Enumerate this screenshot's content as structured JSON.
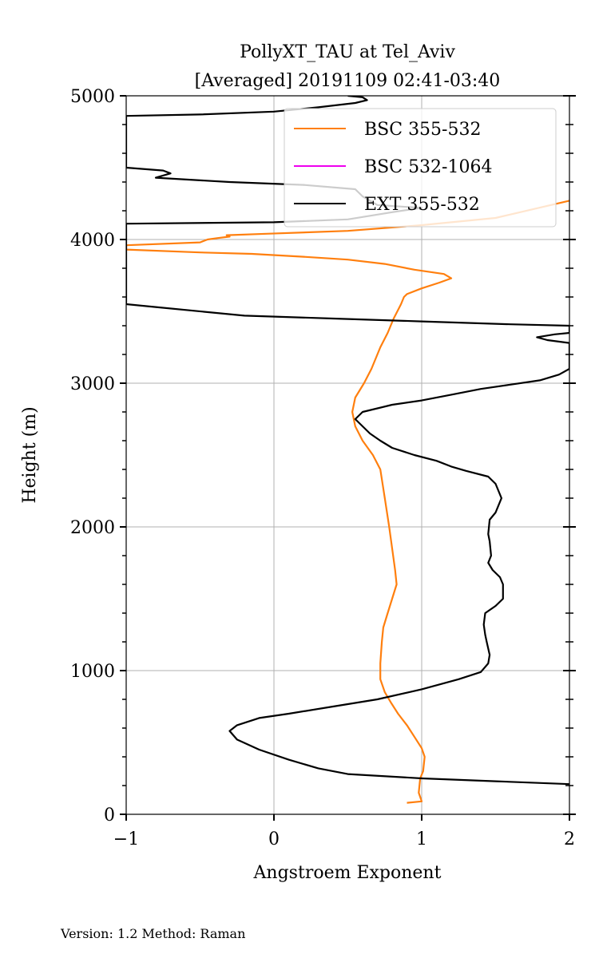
{
  "chart_data": {
    "type": "line",
    "title": "PollyXT_TAU at Tel_Aviv",
    "subtitle": "[Averaged] 20191109 02:41-03:40",
    "xlabel": "Angstroem Exponent",
    "ylabel": "Height (m)",
    "xlim": [
      -1,
      2
    ],
    "ylim": [
      0,
      5000
    ],
    "x_ticks": [
      -1,
      0,
      1,
      2
    ],
    "x_tick_labels": [
      "−1",
      "0",
      "1",
      "2"
    ],
    "y_ticks": [
      0,
      1000,
      2000,
      3000,
      4000,
      5000
    ],
    "y_tick_labels": [
      "0",
      "1000",
      "2000",
      "3000",
      "4000",
      "5000"
    ],
    "grid": true,
    "legend_position": "top-right",
    "series": [
      {
        "name": "BSC 355-532",
        "color": "#ff7f0e",
        "points": [
          [
            0.9,
            80
          ],
          [
            1.0,
            90
          ],
          [
            0.98,
            150
          ],
          [
            0.99,
            250
          ],
          [
            1.01,
            300
          ],
          [
            1.02,
            400
          ],
          [
            1.0,
            460
          ],
          [
            0.95,
            540
          ],
          [
            0.9,
            620
          ],
          [
            0.84,
            700
          ],
          [
            0.79,
            780
          ],
          [
            0.75,
            850
          ],
          [
            0.72,
            940
          ],
          [
            0.72,
            1050
          ],
          [
            0.73,
            1200
          ],
          [
            0.74,
            1300
          ],
          [
            0.77,
            1400
          ],
          [
            0.8,
            1500
          ],
          [
            0.83,
            1600
          ],
          [
            0.82,
            1700
          ],
          [
            0.8,
            1850
          ],
          [
            0.78,
            2000
          ],
          [
            0.75,
            2200
          ],
          [
            0.72,
            2400
          ],
          [
            0.67,
            2500
          ],
          [
            0.6,
            2600
          ],
          [
            0.55,
            2700
          ],
          [
            0.53,
            2800
          ],
          [
            0.55,
            2900
          ],
          [
            0.61,
            3000
          ],
          [
            0.66,
            3100
          ],
          [
            0.72,
            3250
          ],
          [
            0.77,
            3350
          ],
          [
            0.81,
            3450
          ],
          [
            0.86,
            3550
          ],
          [
            0.88,
            3600
          ],
          [
            0.9,
            3620
          ],
          [
            1.0,
            3660
          ],
          [
            1.12,
            3700
          ],
          [
            1.2,
            3730
          ],
          [
            1.15,
            3760
          ],
          [
            0.95,
            3790
          ],
          [
            0.75,
            3830
          ],
          [
            0.5,
            3860
          ],
          [
            0.2,
            3880
          ],
          [
            -0.15,
            3900
          ],
          [
            -0.5,
            3910
          ],
          [
            -1.0,
            3930
          ],
          [
            -1.0,
            3960
          ],
          [
            -0.5,
            3980
          ],
          [
            -0.45,
            4000
          ],
          [
            -0.38,
            4010
          ],
          [
            -0.3,
            4020
          ],
          [
            -0.32,
            4030
          ],
          [
            -0.05,
            4040
          ],
          [
            0.5,
            4060
          ],
          [
            1.0,
            4100
          ],
          [
            1.5,
            4150
          ],
          [
            2.0,
            4270
          ]
        ]
      },
      {
        "name": "BSC 532-1064",
        "color": "#ee00ee",
        "points": []
      },
      {
        "name": "EXT 355-532",
        "color": "#000000",
        "points": [
          [
            2.0,
            210
          ],
          [
            1.5,
            230
          ],
          [
            1.0,
            250
          ],
          [
            0.5,
            280
          ],
          [
            0.3,
            320
          ],
          [
            0.1,
            380
          ],
          [
            -0.1,
            450
          ],
          [
            -0.25,
            520
          ],
          [
            -0.3,
            580
          ],
          [
            -0.25,
            620
          ],
          [
            -0.1,
            670
          ],
          [
            0.1,
            700
          ],
          [
            0.4,
            750
          ],
          [
            0.7,
            800
          ],
          [
            1.0,
            870
          ],
          [
            1.25,
            940
          ],
          [
            1.4,
            990
          ],
          [
            1.45,
            1050
          ],
          [
            1.46,
            1110
          ],
          [
            1.44,
            1200
          ],
          [
            1.43,
            1250
          ],
          [
            1.42,
            1320
          ],
          [
            1.43,
            1400
          ],
          [
            1.5,
            1450
          ],
          [
            1.55,
            1500
          ],
          [
            1.55,
            1600
          ],
          [
            1.53,
            1650
          ],
          [
            1.48,
            1700
          ],
          [
            1.45,
            1750
          ],
          [
            1.47,
            1800
          ],
          [
            1.46,
            1900
          ],
          [
            1.45,
            1950
          ],
          [
            1.46,
            2050
          ],
          [
            1.5,
            2100
          ],
          [
            1.54,
            2200
          ],
          [
            1.52,
            2250
          ],
          [
            1.5,
            2300
          ],
          [
            1.45,
            2350
          ],
          [
            1.3,
            2390
          ],
          [
            1.2,
            2420
          ],
          [
            1.1,
            2460
          ],
          [
            0.95,
            2500
          ],
          [
            0.8,
            2550
          ],
          [
            0.72,
            2600
          ],
          [
            0.65,
            2650
          ],
          [
            0.6,
            2700
          ],
          [
            0.55,
            2750
          ],
          [
            0.6,
            2800
          ],
          [
            0.8,
            2850
          ],
          [
            1.0,
            2880
          ],
          [
            1.2,
            2920
          ],
          [
            1.4,
            2960
          ],
          [
            1.6,
            2990
          ],
          [
            1.8,
            3020
          ],
          [
            1.93,
            3060
          ],
          [
            2.0,
            3100
          ],
          [
            2.0,
            3280
          ],
          [
            1.85,
            3300
          ],
          [
            1.78,
            3320
          ],
          [
            1.9,
            3340
          ],
          [
            2.0,
            3350
          ],
          [
            2.0,
            3400
          ],
          [
            1.6,
            3410
          ],
          [
            1.0,
            3430
          ],
          [
            0.4,
            3450
          ],
          [
            -0.2,
            3470
          ],
          [
            -0.8,
            3530
          ],
          [
            -1.0,
            3550
          ],
          [
            -1.0,
            4110
          ],
          [
            0.0,
            4120
          ],
          [
            0.5,
            4140
          ],
          [
            0.8,
            4190
          ],
          [
            1.0,
            4220
          ],
          [
            0.7,
            4240
          ],
          [
            0.6,
            4300
          ],
          [
            0.55,
            4350
          ],
          [
            0.2,
            4380
          ],
          [
            -0.3,
            4400
          ],
          [
            -0.8,
            4430
          ],
          [
            -0.7,
            4460
          ],
          [
            -0.75,
            4480
          ],
          [
            -1.0,
            4500
          ],
          [
            -1.0,
            4860
          ],
          [
            -0.5,
            4870
          ],
          [
            0.0,
            4890
          ],
          [
            0.3,
            4920
          ],
          [
            0.55,
            4950
          ],
          [
            0.63,
            4970
          ],
          [
            0.6,
            4990
          ],
          [
            0.5,
            5000
          ]
        ]
      }
    ]
  },
  "footer": {
    "version_text": "Version: 1.2  Method: Raman"
  }
}
